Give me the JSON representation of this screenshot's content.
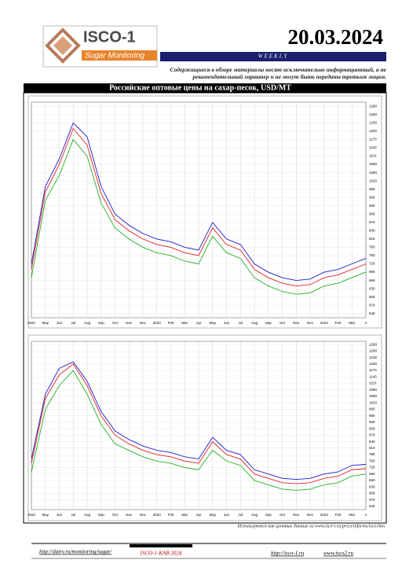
{
  "header": {
    "logo_title": "ISCO-1",
    "logo_subtitle": "Sugar Monitoring",
    "date": "20.03.2024",
    "frequency": "WEEKLY",
    "disclaimer": "Содержащиеся в обзоре материалы носят исключительно информационный, а не рекомендательный характер и не могут быть переданы третьим лицам."
  },
  "section_title": "Российские оптовые цены на сахар-песок, USD/MT",
  "chart_data": [
    {
      "type": "line",
      "categories": [
        "2022",
        "May",
        "Jun",
        "Jul",
        "Aug",
        "Sep",
        "Oct",
        "Nov",
        "Dec",
        "2023",
        "Feb",
        "Mar",
        "Apr",
        "May",
        "Jun",
        "Jul",
        "Aug",
        "Sep",
        "Oct",
        "Nov",
        "Dec",
        "2024",
        "Feb",
        "Mar",
        "A"
      ],
      "series": [
        {
          "color": "#1a1ad0",
          "values": [
            720,
            1000,
            1100,
            1230,
            1180,
            1000,
            900,
            860,
            830,
            810,
            800,
            780,
            770,
            870,
            810,
            790,
            720,
            690,
            670,
            660,
            665,
            690,
            700,
            720,
            740
          ]
        },
        {
          "color": "#e02020",
          "values": [
            700,
            980,
            1080,
            1210,
            1150,
            975,
            880,
            840,
            810,
            790,
            780,
            760,
            750,
            850,
            790,
            770,
            700,
            670,
            650,
            640,
            645,
            670,
            680,
            700,
            720
          ]
        },
        {
          "color": "#22b022",
          "values": [
            670,
            950,
            1040,
            1170,
            1110,
            940,
            850,
            810,
            780,
            760,
            750,
            730,
            720,
            820,
            760,
            740,
            670,
            640,
            620,
            610,
            615,
            640,
            650,
            670,
            690
          ]
        }
      ],
      "ylim": [
        525,
        1305
      ],
      "yticks": [
        540,
        570,
        600,
        630,
        660,
        690,
        720,
        750,
        780,
        810,
        840,
        870,
        900,
        930,
        960,
        990,
        1020,
        1050,
        1080,
        1110,
        1140,
        1170,
        1200,
        1230,
        1260,
        1290
      ],
      "grid": true
    },
    {
      "type": "line",
      "categories": [
        "2022",
        "May",
        "Jun",
        "Jul",
        "Aug",
        "Sep",
        "Oct",
        "Nov",
        "Dec",
        "2023",
        "Feb",
        "Mar",
        "Apr",
        "May",
        "Jun",
        "Jul",
        "Aug",
        "Sep",
        "Oct",
        "Nov",
        "Dec",
        "2024",
        "Feb",
        "Mar",
        "A"
      ],
      "series": [
        {
          "color": "#1a1ad0",
          "values": [
            760,
            1060,
            1180,
            1210,
            1120,
            980,
            890,
            850,
            820,
            800,
            790,
            770,
            760,
            860,
            800,
            780,
            710,
            690,
            670,
            665,
            670,
            690,
            700,
            730,
            735
          ]
        },
        {
          "color": "#e02020",
          "values": [
            740,
            1040,
            1150,
            1200,
            1100,
            960,
            870,
            830,
            800,
            780,
            770,
            750,
            740,
            840,
            780,
            760,
            690,
            670,
            650,
            645,
            650,
            670,
            680,
            710,
            715
          ]
        },
        {
          "color": "#22b022",
          "values": [
            700,
            990,
            1100,
            1170,
            1060,
            920,
            830,
            800,
            770,
            750,
            740,
            720,
            710,
            800,
            750,
            730,
            660,
            640,
            620,
            615,
            620,
            640,
            650,
            680,
            690
          ]
        }
      ],
      "ylim": [
        525,
        1305
      ],
      "yticks": [
        540,
        570,
        600,
        630,
        660,
        690,
        720,
        750,
        780,
        810,
        840,
        870,
        900,
        930,
        960,
        990,
        1020,
        1050,
        1080,
        1110,
        1140,
        1170,
        1200,
        1230,
        1260,
        1290
      ],
      "grid": true
    }
  ],
  "footer": {
    "source_note": "Используются как ценовые данные из www.isco-i.ru/price/informs/isco.htm",
    "link_left": "http://dairy.ru/monitoring/sugar/",
    "center": "ISCO-1-KAB 2024",
    "link_right_1": "http://isco-1.ru",
    "link_right_2": "www.isco2.ru"
  }
}
